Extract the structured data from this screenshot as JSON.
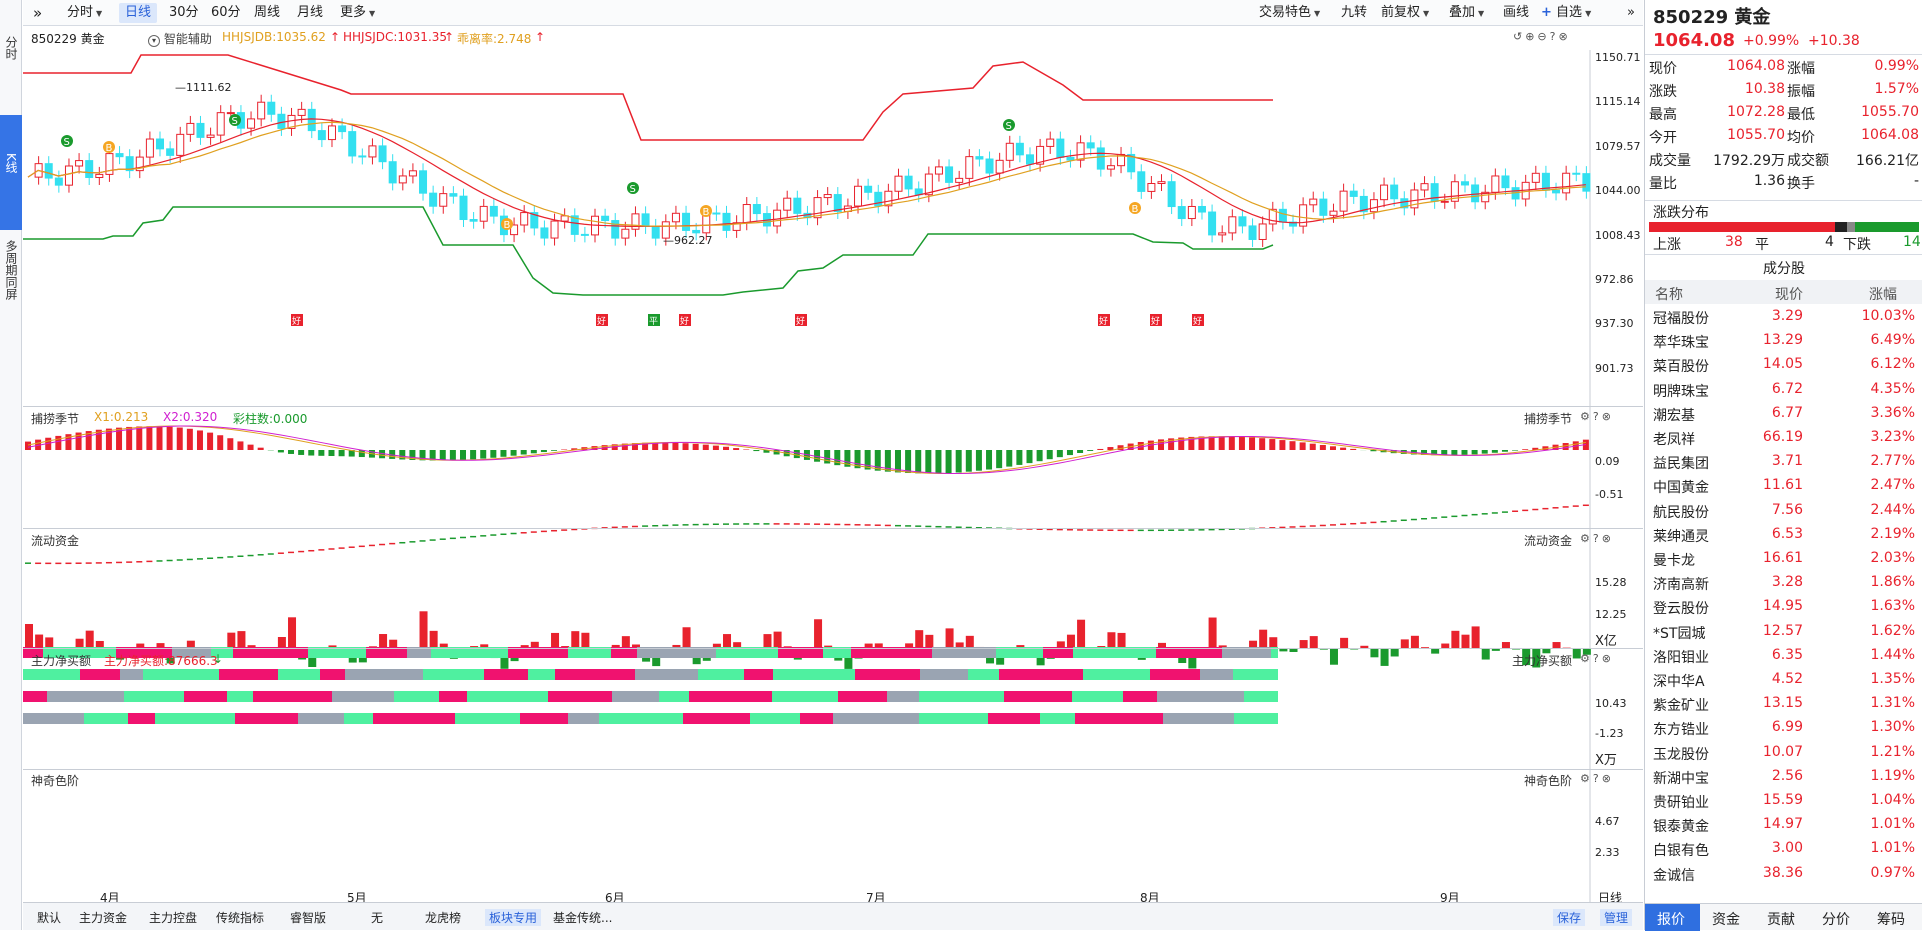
{
  "left_nav": [
    "分时",
    "K线",
    "多周期同屏"
  ],
  "toolbar": {
    "items": [
      "分时",
      "日线",
      "30分",
      "60分",
      "周线",
      "月线",
      "更多"
    ],
    "right": [
      "交易特色",
      "九转",
      "前复权",
      "叠加",
      "画线",
      "自选"
    ]
  },
  "info": {
    "name": "850229 黄金",
    "assist": "智能辅助",
    "ind1": "HHJSJDB:1035.62",
    "ind2": "HHJSJDC:1031.35",
    "ind3": "乖离率:2.748"
  },
  "main_axis": [
    "1150.71",
    "1115.14",
    "1079.57",
    "1044.00",
    "1008.43",
    "972.86",
    "937.30",
    "901.73"
  ],
  "annot": {
    "high": "1111.62",
    "low": "962.27"
  },
  "signals": {
    "buy": "B",
    "sell": "S",
    "good": "好",
    "neutral": "平"
  },
  "panels": [
    {
      "title": "捕捞季节",
      "sub1": "X1:0.213",
      "sub2": "X2:0.320",
      "sub3": "彩柱数:0.000",
      "axis": [
        "0.09",
        "-0.51"
      ]
    },
    {
      "title": "流动资金",
      "axis": [
        "15.28",
        "12.25"
      ],
      "unit": "X亿"
    },
    {
      "title": "主力净买额",
      "sub1": "主力净买额:87666.3",
      "axis": [
        "10.43",
        "-1.23"
      ],
      "unit": "X万"
    },
    {
      "title": "神奇色阶",
      "axis": [
        "4.67",
        "2.33"
      ]
    }
  ],
  "months": [
    "4月",
    "5月",
    "6月",
    "7月",
    "8月",
    "9月"
  ],
  "bottom": {
    "tabs": [
      "默认",
      "主力资金",
      "主力控盘",
      "传统指标",
      "睿智版",
      "无",
      "龙虎榜",
      "板块专用",
      "基金传统..."
    ],
    "right": [
      "保存",
      "管理"
    ],
    "period": "日线"
  },
  "quote": {
    "title": "850229 黄金",
    "price": "1064.08",
    "pct": "+0.99%",
    "chg": "+10.38",
    "rows": [
      [
        "现价",
        "1064.08",
        "涨幅",
        "0.99%"
      ],
      [
        "涨跌",
        "10.38",
        "振幅",
        "1.57%"
      ],
      [
        "最高",
        "1072.28",
        "最低",
        "1055.70"
      ],
      [
        "今开",
        "1055.70",
        "均价",
        "1064.08"
      ],
      [
        "成交量",
        "1792.29万",
        "成交额",
        "166.21亿"
      ],
      [
        "量比",
        "1.36",
        "换手",
        "-"
      ]
    ]
  },
  "breadth": {
    "title": "涨跌分布",
    "up_label": "上涨",
    "up": "38",
    "flat_label": "平",
    "flat": "4",
    "down_label": "下跌",
    "down": "14"
  },
  "components": {
    "title": "成分股",
    "headers": [
      "名称",
      "现价",
      "涨幅"
    ],
    "rows": [
      [
        "冠福股份",
        "3.29",
        "10.03%"
      ],
      [
        "萃华珠宝",
        "13.29",
        "6.49%"
      ],
      [
        "菜百股份",
        "14.05",
        "6.12%"
      ],
      [
        "明牌珠宝",
        "6.72",
        "4.35%"
      ],
      [
        "潮宏基",
        "6.77",
        "3.36%"
      ],
      [
        "老凤祥",
        "66.19",
        "3.23%"
      ],
      [
        "益民集团",
        "3.71",
        "2.77%"
      ],
      [
        "中国黄金",
        "11.61",
        "2.47%"
      ],
      [
        "航民股份",
        "7.56",
        "2.44%"
      ],
      [
        "莱绅通灵",
        "6.53",
        "2.19%"
      ],
      [
        "曼卡龙",
        "16.61",
        "2.03%"
      ],
      [
        "济南高新",
        "3.28",
        "1.86%"
      ],
      [
        "登云股份",
        "14.95",
        "1.63%"
      ],
      [
        "*ST园城",
        "12.57",
        "1.62%"
      ],
      [
        "洛阳钼业",
        "6.35",
        "1.44%"
      ],
      [
        "深中华A",
        "4.52",
        "1.35%"
      ],
      [
        "紫金矿业",
        "13.15",
        "1.31%"
      ],
      [
        "东方锆业",
        "6.99",
        "1.30%"
      ],
      [
        "玉龙股份",
        "10.07",
        "1.21%"
      ],
      [
        "新湖中宝",
        "2.56",
        "1.19%"
      ],
      [
        "贵研铂业",
        "15.59",
        "1.04%"
      ],
      [
        "银泰黄金",
        "14.97",
        "1.01%"
      ],
      [
        "白银有色",
        "3.00",
        "1.01%"
      ],
      [
        "金诚信",
        "38.36",
        "0.97%"
      ]
    ]
  },
  "side_tabs": [
    "报价",
    "资金",
    "贡献",
    "分价",
    "筹码"
  ],
  "colors": {
    "up": "#e8222d",
    "down": "#1a9a2d",
    "cyan": "#33e0f0",
    "pink": "#f0126f",
    "mint": "#4ff0a0",
    "gray": "#9aa4b2"
  }
}
